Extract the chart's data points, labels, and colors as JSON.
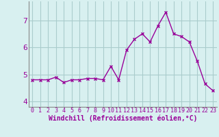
{
  "x": [
    0,
    1,
    2,
    3,
    4,
    5,
    6,
    7,
    8,
    9,
    10,
    11,
    12,
    13,
    14,
    15,
    16,
    17,
    18,
    19,
    20,
    21,
    22,
    23
  ],
  "y": [
    4.8,
    4.8,
    4.8,
    4.9,
    4.7,
    4.8,
    4.8,
    4.85,
    4.85,
    4.8,
    5.3,
    4.8,
    5.9,
    6.3,
    6.5,
    6.2,
    6.8,
    7.3,
    6.5,
    6.4,
    6.2,
    5.5,
    4.65,
    4.4
  ],
  "line_color": "#990099",
  "marker": "x",
  "marker_size": 3,
  "bg_color": "#d8f0f0",
  "grid_color": "#aacccc",
  "xlabel": "Windchill (Refroidissement éolien,°C)",
  "xlabel_color": "#990099",
  "xlabel_fontsize": 7,
  "tick_color": "#990099",
  "tick_fontsize": 6,
  "ytick_fontsize": 8,
  "yticks": [
    4,
    5,
    6,
    7
  ],
  "ylim": [
    3.8,
    7.7
  ],
  "xlim": [
    -0.5,
    23.5
  ],
  "spine_color": "#888888",
  "linewidth": 1.0
}
